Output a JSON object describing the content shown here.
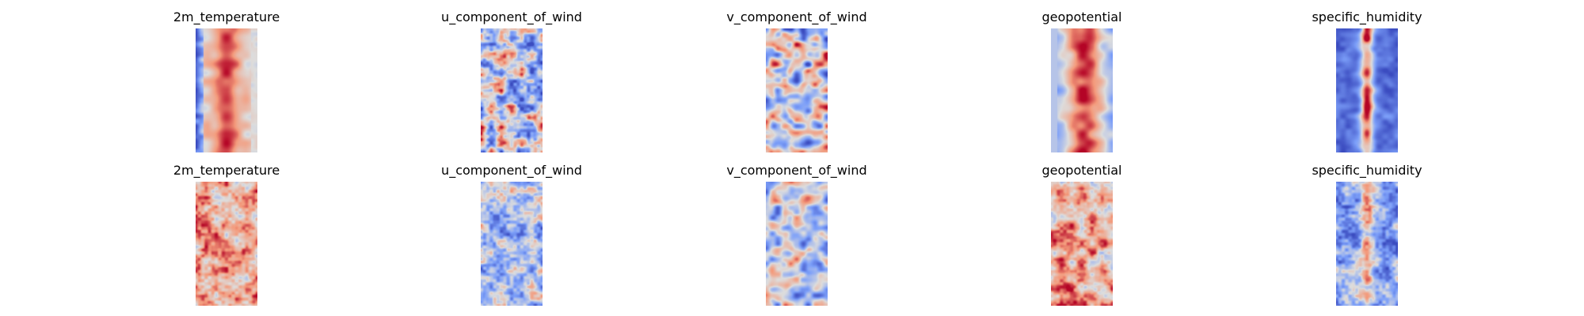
{
  "chart_data": [
    {
      "type": "heatmap",
      "title": "2m_temperature",
      "colormap": "coolwarm",
      "texture": "warm",
      "seed": 11,
      "grid": false,
      "axes": false
    },
    {
      "type": "heatmap",
      "title": "u_component_of_wind",
      "colormap": "coolwarm",
      "texture": "streaks",
      "seed": 23,
      "grid": false,
      "axes": false
    },
    {
      "type": "heatmap",
      "title": "v_component_of_wind",
      "colormap": "coolwarm",
      "texture": "mottled",
      "seed": 37,
      "grid": false,
      "axes": false
    },
    {
      "type": "heatmap",
      "title": "geopotential",
      "colormap": "coolwarm",
      "texture": "warm-band",
      "seed": 41,
      "grid": false,
      "axes": false
    },
    {
      "type": "heatmap",
      "title": "specific_humidity",
      "colormap": "coolwarm",
      "texture": "humid-core",
      "seed": 53,
      "grid": false,
      "axes": false
    },
    {
      "type": "heatmap",
      "title": "2m_temperature",
      "colormap": "coolwarm",
      "texture": "warm-noisy",
      "seed": 61,
      "grid": false,
      "axes": false
    },
    {
      "type": "heatmap",
      "title": "u_component_of_wind",
      "colormap": "coolwarm",
      "texture": "cool-noisy",
      "seed": 73,
      "grid": false,
      "axes": false
    },
    {
      "type": "heatmap",
      "title": "v_component_of_wind",
      "colormap": "coolwarm",
      "texture": "cool-mottled",
      "seed": 89,
      "grid": false,
      "axes": false
    },
    {
      "type": "heatmap",
      "title": "geopotential",
      "colormap": "coolwarm",
      "texture": "warm-noisy2",
      "seed": 97,
      "grid": false,
      "axes": false
    },
    {
      "type": "heatmap",
      "title": "specific_humidity",
      "colormap": "coolwarm",
      "texture": "cool-humid",
      "seed": 101,
      "grid": false,
      "axes": false
    }
  ]
}
